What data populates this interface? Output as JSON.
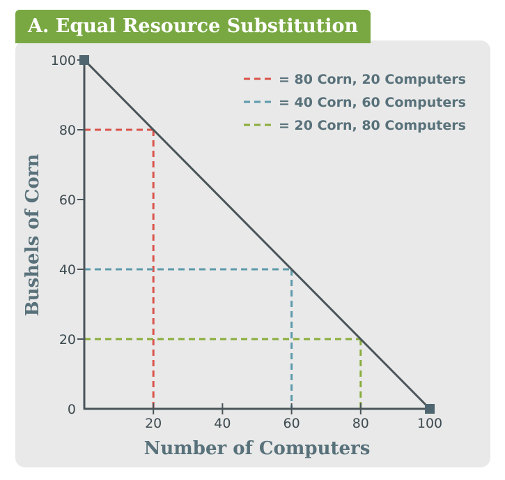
{
  "title": "A. Equal Resource Substitution",
  "chart_data": {
    "type": "line",
    "xlabel": "Number of Computers",
    "ylabel": "Bushels of Corn",
    "xlim": [
      0,
      100
    ],
    "ylim": [
      0,
      100
    ],
    "x_ticks": [
      "20",
      "40",
      "60",
      "80",
      "100"
    ],
    "y_ticks": [
      "0",
      "20",
      "40",
      "60",
      "80",
      "100"
    ],
    "frontier": {
      "points": [
        [
          0,
          100
        ],
        [
          100,
          0
        ]
      ],
      "color": "#4a555a"
    },
    "guides": [
      {
        "label": "= 80 Corn, 20 Computers",
        "x": 20,
        "y": 80,
        "color": "#d9534a"
      },
      {
        "label": "= 40 Corn, 60 Computers",
        "x": 60,
        "y": 40,
        "color": "#5d9aab"
      },
      {
        "label": "= 20 Corn, 80 Computers",
        "x": 80,
        "y": 20,
        "color": "#8aad3c"
      }
    ],
    "legend_position": "top-right",
    "grid": false
  }
}
